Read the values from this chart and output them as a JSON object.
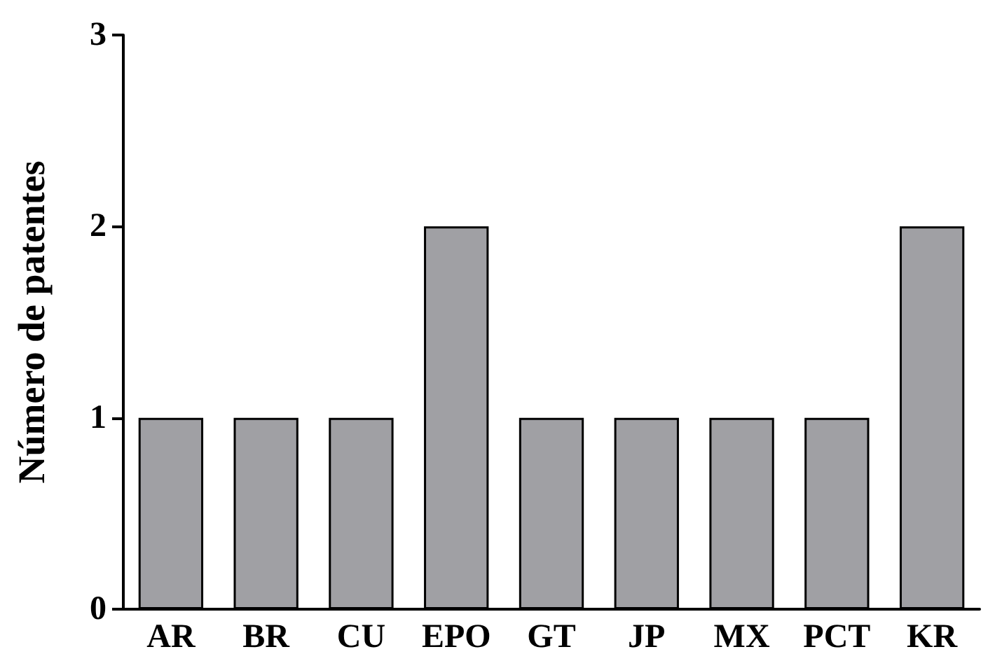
{
  "chart_data": {
    "type": "bar",
    "ylabel": "Número de patentes",
    "categories": [
      "AR",
      "BR",
      "CU",
      "EPO",
      "GT",
      "JP",
      "MX",
      "PCT",
      "KR"
    ],
    "values": [
      1,
      1,
      1,
      2,
      1,
      1,
      1,
      1,
      2
    ],
    "color": "#a0a0a4",
    "ylim": [
      0,
      3
    ],
    "yticks": [
      0,
      1,
      2,
      3
    ]
  }
}
